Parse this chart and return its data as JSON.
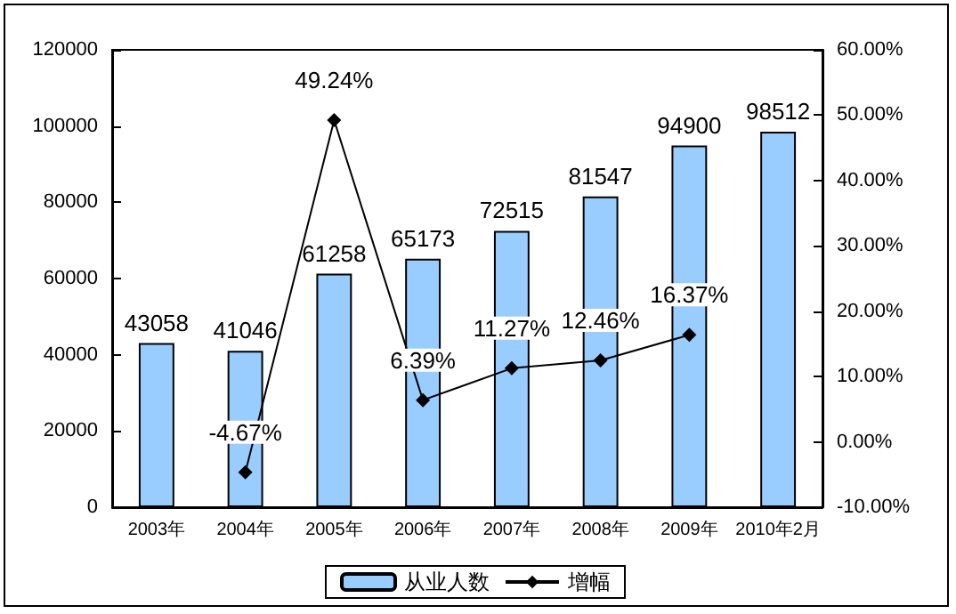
{
  "chart_data": {
    "type": "bar",
    "categories": [
      "2003年",
      "2004年",
      "2005年",
      "2006年",
      "2007年",
      "2008年",
      "2009年",
      "2010年2月"
    ],
    "series": [
      {
        "name": "从业人数",
        "color": "#99ccff",
        "values": [
          43058,
          41046,
          61258,
          65173,
          72515,
          81547,
          94900,
          98512
        ],
        "value_labels": [
          "43058",
          "41046",
          "61258",
          "65173",
          "72515",
          "81547",
          "94900",
          "98512"
        ]
      },
      {
        "name": "增幅",
        "type": "line",
        "axis": "y2",
        "color": "#000000",
        "marker": "diamond",
        "values": [
          null,
          -4.67,
          49.24,
          6.39,
          11.27,
          12.46,
          16.37,
          null
        ],
        "value_labels": [
          null,
          "-4.67%",
          "49.24%",
          "6.39%",
          "11.27%",
          "12.46%",
          "16.37%",
          null
        ]
      }
    ],
    "ylim": [
      0,
      120000
    ],
    "yticks": [
      0,
      20000,
      40000,
      60000,
      80000,
      100000,
      120000
    ],
    "y2lim": [
      -10,
      60
    ],
    "y2ticks": [
      {
        "value": -10,
        "label": "-10.00%"
      },
      {
        "value": 0,
        "label": "0.00%"
      },
      {
        "value": 10,
        "label": "10.00%"
      },
      {
        "value": 20,
        "label": "20.00%"
      },
      {
        "value": 30,
        "label": "30.00%"
      },
      {
        "value": 40,
        "label": "40.00%"
      },
      {
        "value": 50,
        "label": "50.00%"
      },
      {
        "value": 60,
        "label": "60.00%"
      }
    ],
    "legend": "bottom",
    "grid": false
  }
}
